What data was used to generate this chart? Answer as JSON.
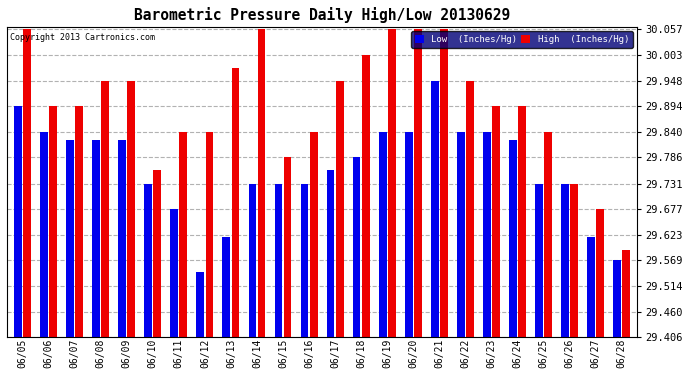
{
  "title": "Barometric Pressure Daily High/Low 20130629",
  "copyright": "Copyright 2013 Cartronics.com",
  "legend_low": "Low  (Inches/Hg)",
  "legend_high": "High  (Inches/Hg)",
  "background_color": "#ffffff",
  "grid_color": "#aaaaaa",
  "bar_color_low": "#0000ee",
  "bar_color_high": "#ee0000",
  "ylim_min": 29.406,
  "ylim_max": 30.062,
  "yticks": [
    29.406,
    29.46,
    29.514,
    29.569,
    29.623,
    29.677,
    29.731,
    29.786,
    29.84,
    29.894,
    29.948,
    30.003,
    30.057
  ],
  "dates": [
    "06/05",
    "06/06",
    "06/07",
    "06/08",
    "06/09",
    "06/10",
    "06/11",
    "06/12",
    "06/13",
    "06/14",
    "06/15",
    "06/16",
    "06/17",
    "06/18",
    "06/19",
    "06/20",
    "06/21",
    "06/22",
    "06/23",
    "06/24",
    "06/25",
    "06/26",
    "06/27",
    "06/28"
  ],
  "high_values": [
    30.057,
    29.894,
    29.894,
    29.948,
    29.948,
    29.76,
    29.84,
    29.84,
    29.975,
    30.057,
    29.786,
    29.84,
    29.948,
    30.003,
    30.057,
    30.057,
    30.057,
    29.948,
    29.894,
    29.894,
    29.84,
    29.731,
    29.677,
    29.59
  ],
  "low_values": [
    29.894,
    29.84,
    29.822,
    29.822,
    29.822,
    29.731,
    29.677,
    29.543,
    29.617,
    29.731,
    29.731,
    29.731,
    29.76,
    29.786,
    29.84,
    29.84,
    29.948,
    29.84,
    29.84,
    29.822,
    29.731,
    29.731,
    29.617,
    29.57
  ]
}
